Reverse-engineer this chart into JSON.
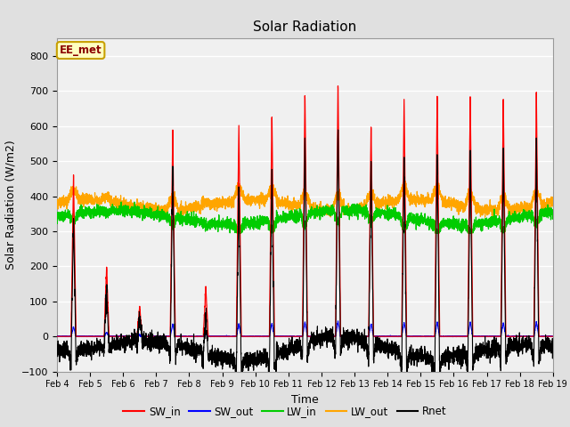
{
  "title": "Solar Radiation",
  "xlabel": "Time",
  "ylabel": "Solar Radiation (W/m2)",
  "ylim": [
    -100,
    850
  ],
  "yticks": [
    -100,
    0,
    100,
    200,
    300,
    400,
    500,
    600,
    700,
    800
  ],
  "date_start": 4,
  "date_end": 19,
  "n_days": 15,
  "annotation_text": "EE_met",
  "annotation_color": "#8B0000",
  "annotation_bg": "#FFFFC0",
  "annotation_border": "#C8A000",
  "series_colors": {
    "SW_in": "#FF0000",
    "SW_out": "#0000FF",
    "LW_in": "#00CC00",
    "LW_out": "#FFA500",
    "Rnet": "#000000"
  },
  "bg_color": "#E0E0E0",
  "plot_bg_color": "#F0F0F0",
  "grid_color": "#FFFFFF",
  "sw_peaks": [
    460,
    200,
    85,
    590,
    140,
    610,
    640,
    700,
    730,
    610,
    680,
    690,
    690,
    680,
    695
  ]
}
